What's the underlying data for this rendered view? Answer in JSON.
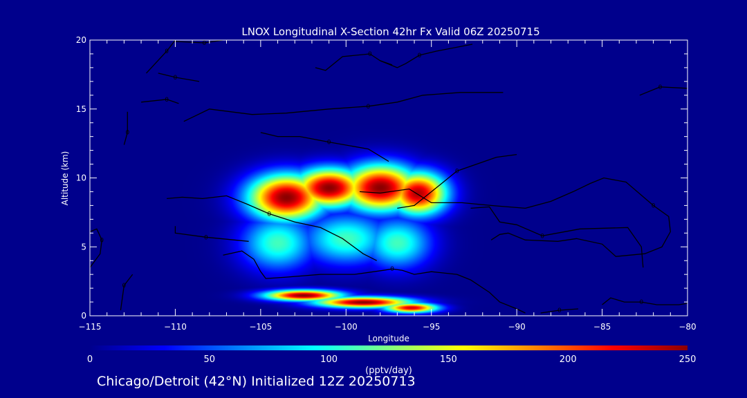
{
  "chart_data": {
    "type": "heatmap",
    "title": "LNOX Longitudinal X-Section 42hr  Fx Valid 06Z 20250715",
    "xlabel": "Longitude",
    "ylabel": "Altitude (km)",
    "xlim": [
      -115,
      -80
    ],
    "ylim": [
      0,
      20
    ],
    "x_ticks": [
      -115,
      -110,
      -105,
      -100,
      -95,
      -90,
      -85,
      -80
    ],
    "x_tick_labels": [
      "−115",
      "−110",
      "−105",
      "−100",
      "−95",
      "−90",
      "−85",
      "−80"
    ],
    "y_ticks": [
      0,
      5,
      10,
      15,
      20
    ],
    "y_tick_labels": [
      "0",
      "5",
      "10",
      "15",
      "20"
    ],
    "colorbar": {
      "label": "(pptv/day)",
      "range": [
        0,
        250
      ],
      "ticks": [
        0,
        50,
        100,
        150,
        200,
        250
      ],
      "tick_labels": [
        "0",
        "50",
        "100",
        "150",
        "200",
        "250"
      ],
      "colors": [
        "#00008c",
        "#0000ff",
        "#0080ff",
        "#00ffff",
        "#80ff80",
        "#ffff00",
        "#ff8000",
        "#ff0000",
        "#8b0000"
      ]
    },
    "field_blobs": [
      {
        "x": -103.5,
        "y": 8.6,
        "sx": 1.6,
        "sy": 1.2,
        "value": 250
      },
      {
        "x": -101.0,
        "y": 9.3,
        "sx": 1.5,
        "sy": 1.0,
        "value": 250
      },
      {
        "x": -98.0,
        "y": 9.3,
        "sx": 1.6,
        "sy": 1.2,
        "value": 250
      },
      {
        "x": -95.8,
        "y": 8.9,
        "sx": 1.2,
        "sy": 1.1,
        "value": 240
      },
      {
        "x": -104.0,
        "y": 5.3,
        "sx": 1.5,
        "sy": 1.4,
        "value": 110
      },
      {
        "x": -100.0,
        "y": 5.6,
        "sx": 1.8,
        "sy": 1.3,
        "value": 110
      },
      {
        "x": -97.0,
        "y": 5.3,
        "sx": 1.4,
        "sy": 1.3,
        "value": 110
      },
      {
        "x": -102.5,
        "y": 1.5,
        "sx": 1.6,
        "sy": 0.28,
        "value": 250
      },
      {
        "x": -99.0,
        "y": 1.0,
        "sx": 2.0,
        "sy": 0.28,
        "value": 250
      },
      {
        "x": -96.2,
        "y": 0.6,
        "sx": 1.1,
        "sy": 0.25,
        "value": 230
      }
    ],
    "contour_label": "0",
    "contours": [
      [
        [
          -111.7,
          17.6
        ],
        [
          -110.5,
          19.2
        ],
        [
          -110.0,
          20.0
        ]
      ],
      [
        [
          -107.2,
          20.0
        ],
        [
          -108.3,
          19.8
        ],
        [
          -110.0,
          19.9
        ]
      ],
      [
        [
          -111.0,
          17.6
        ],
        [
          -110.0,
          17.3
        ],
        [
          -108.6,
          17.0
        ]
      ],
      [
        [
          -112.0,
          15.5
        ],
        [
          -110.5,
          15.7
        ],
        [
          -109.8,
          15.4
        ]
      ],
      [
        [
          -112.8,
          14.8
        ],
        [
          -112.8,
          13.3
        ],
        [
          -113.0,
          12.4
        ]
      ],
      [
        [
          -110.5,
          8.5
        ],
        [
          -109.6,
          8.6
        ],
        [
          -108.4,
          8.5
        ],
        [
          -107.0,
          8.7
        ],
        [
          -105.8,
          8.1
        ],
        [
          -104.5,
          7.4
        ],
        [
          -103.0,
          6.8
        ],
        [
          -101.5,
          6.4
        ],
        [
          -100.2,
          5.6
        ],
        [
          -99.0,
          4.5
        ],
        [
          -98.2,
          4.0
        ]
      ],
      [
        [
          -110.0,
          6.5
        ],
        [
          -110.0,
          6.0
        ],
        [
          -108.2,
          5.7
        ],
        [
          -105.7,
          5.4
        ]
      ],
      [
        [
          -97.0,
          7.8
        ],
        [
          -96.0,
          8.0
        ],
        [
          -94.5,
          9.5
        ],
        [
          -93.5,
          10.5
        ],
        [
          -91.2,
          11.5
        ],
        [
          -90.0,
          11.7
        ]
      ],
      [
        [
          -105.0,
          13.3
        ],
        [
          -104.0,
          13.0
        ],
        [
          -102.7,
          13.0
        ],
        [
          -101.0,
          12.6
        ],
        [
          -98.7,
          12.1
        ],
        [
          -97.5,
          11.2
        ]
      ],
      [
        [
          -109.5,
          14.1
        ],
        [
          -108.0,
          15.0
        ],
        [
          -105.5,
          14.6
        ],
        [
          -103.5,
          14.7
        ],
        [
          -101.0,
          15.0
        ],
        [
          -98.7,
          15.2
        ],
        [
          -97.0,
          15.5
        ],
        [
          -95.5,
          16.0
        ],
        [
          -93.3,
          16.2
        ],
        [
          -90.8,
          16.2
        ]
      ],
      [
        [
          -101.8,
          18.0
        ],
        [
          -101.2,
          17.8
        ],
        [
          -100.2,
          18.8
        ],
        [
          -98.6,
          19.0
        ],
        [
          -98.0,
          18.5
        ],
        [
          -97.3,
          18.2
        ]
      ],
      [
        [
          -98.0,
          18.5
        ],
        [
          -97.0,
          18.0
        ],
        [
          -96.5,
          18.3
        ],
        [
          -95.7,
          18.9
        ],
        [
          -94.7,
          19.2
        ],
        [
          -92.6,
          19.7
        ]
      ],
      [
        [
          -82.8,
          16.0
        ],
        [
          -81.6,
          16.6
        ],
        [
          -80.0,
          16.5
        ]
      ],
      [
        [
          -99.2,
          9.0
        ],
        [
          -98.0,
          8.9
        ],
        [
          -96.3,
          9.2
        ],
        [
          -95.0,
          8.2
        ],
        [
          -93.2,
          8.2
        ],
        [
          -91.5,
          8.0
        ],
        [
          -89.5,
          7.8
        ],
        [
          -88.0,
          8.3
        ],
        [
          -86.7,
          9.0
        ],
        [
          -85.7,
          9.6
        ],
        [
          -84.9,
          10.0
        ],
        [
          -83.6,
          9.7
        ],
        [
          -82.0,
          8.0
        ],
        [
          -81.1,
          7.2
        ],
        [
          -81.0,
          6.1
        ],
        [
          -81.5,
          5.0
        ],
        [
          -82.5,
          4.5
        ],
        [
          -84.2,
          4.3
        ],
        [
          -85.0,
          5.2
        ],
        [
          -86.5,
          5.6
        ],
        [
          -87.6,
          5.4
        ],
        [
          -89.5,
          5.5
        ],
        [
          -90.5,
          6.0
        ],
        [
          -91.0,
          5.9
        ],
        [
          -91.5,
          5.5
        ]
      ],
      [
        [
          -92.7,
          7.8
        ],
        [
          -91.6,
          7.9
        ],
        [
          -91.0,
          6.8
        ],
        [
          -90.0,
          6.6
        ],
        [
          -88.5,
          5.8
        ],
        [
          -86.3,
          6.3
        ],
        [
          -83.5,
          6.4
        ],
        [
          -82.7,
          5.0
        ],
        [
          -82.6,
          3.5
        ]
      ],
      [
        [
          -107.2,
          4.4
        ],
        [
          -106.1,
          4.7
        ],
        [
          -105.4,
          4.1
        ],
        [
          -105.0,
          3.2
        ],
        [
          -104.7,
          2.7
        ],
        [
          -103.5,
          2.8
        ],
        [
          -101.5,
          3.0
        ],
        [
          -99.5,
          3.0
        ],
        [
          -97.8,
          3.3
        ],
        [
          -97.3,
          3.4
        ],
        [
          -96.7,
          3.3
        ],
        [
          -96.0,
          3.0
        ],
        [
          -95.0,
          3.2
        ],
        [
          -93.5,
          3.0
        ],
        [
          -92.7,
          2.6
        ],
        [
          -91.6,
          1.7
        ],
        [
          -91.0,
          1.0
        ],
        [
          -90.0,
          0.5
        ],
        [
          -89.5,
          0.2
        ]
      ],
      [
        [
          -88.6,
          0.2
        ],
        [
          -87.5,
          0.4
        ],
        [
          -86.4,
          0.5
        ]
      ],
      [
        [
          -85.0,
          0.8
        ],
        [
          -84.5,
          1.3
        ],
        [
          -83.7,
          1.0
        ],
        [
          -82.7,
          1.0
        ],
        [
          -81.8,
          0.8
        ],
        [
          -80.5,
          0.8
        ],
        [
          -80.0,
          0.9
        ]
      ],
      [
        [
          -115.0,
          3.5
        ],
        [
          -114.4,
          4.5
        ],
        [
          -114.3,
          5.5
        ],
        [
          -114.6,
          6.3
        ],
        [
          -115.0,
          6.1
        ]
      ],
      [
        [
          -113.2,
          0.4
        ],
        [
          -113.0,
          2.2
        ],
        [
          -112.5,
          3.0
        ]
      ]
    ]
  },
  "footer": "Chicago/Detroit (42°N) Initialized 12Z 20250713"
}
